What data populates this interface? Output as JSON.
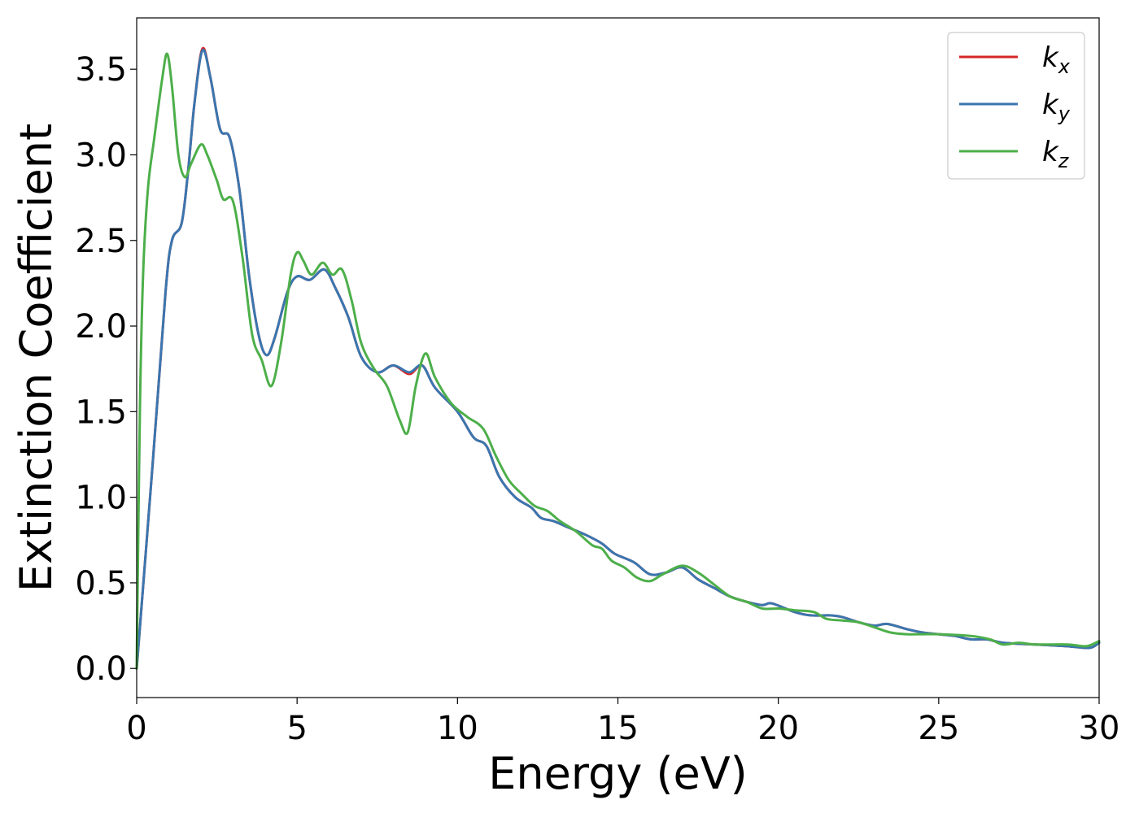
{
  "chart_data": {
    "type": "line",
    "xlabel": "Energy (eV)",
    "ylabel": "Extinction Coefficient",
    "xlim": [
      0,
      30
    ],
    "ylim": [
      -0.17,
      3.8
    ],
    "xticks": [
      "0",
      "5",
      "10",
      "15",
      "20",
      "25",
      "30"
    ],
    "yticks": [
      "0.0",
      "0.5",
      "1.0",
      "1.5",
      "2.0",
      "2.5",
      "3.0",
      "3.5"
    ],
    "grid": false,
    "legend_position": "top-right",
    "series": [
      {
        "name": "k",
        "sub": "x",
        "color": "#d62728",
        "points": [
          [
            0,
            0
          ],
          [
            0.5,
            1.2
          ],
          [
            0.9,
            2.2
          ],
          [
            1.1,
            2.5
          ],
          [
            1.4,
            2.6
          ],
          [
            1.6,
            2.9
          ],
          [
            1.8,
            3.3
          ],
          [
            2.05,
            3.62
          ],
          [
            2.3,
            3.45
          ],
          [
            2.6,
            3.15
          ],
          [
            2.9,
            3.1
          ],
          [
            3.2,
            2.8
          ],
          [
            3.5,
            2.3
          ],
          [
            3.8,
            1.95
          ],
          [
            4.05,
            1.83
          ],
          [
            4.3,
            1.93
          ],
          [
            4.7,
            2.2
          ],
          [
            5.0,
            2.29
          ],
          [
            5.4,
            2.27
          ],
          [
            5.85,
            2.33
          ],
          [
            6.2,
            2.22
          ],
          [
            6.6,
            2.05
          ],
          [
            7.0,
            1.82
          ],
          [
            7.5,
            1.73
          ],
          [
            8.0,
            1.77
          ],
          [
            8.5,
            1.72
          ],
          [
            8.9,
            1.77
          ],
          [
            9.3,
            1.64
          ],
          [
            10.0,
            1.5
          ],
          [
            10.5,
            1.35
          ],
          [
            10.9,
            1.3
          ],
          [
            11.3,
            1.12
          ],
          [
            11.8,
            1.0
          ],
          [
            12.3,
            0.94
          ],
          [
            12.6,
            0.88
          ],
          [
            13.0,
            0.86
          ],
          [
            13.5,
            0.82
          ],
          [
            14.0,
            0.78
          ],
          [
            14.5,
            0.73
          ],
          [
            14.9,
            0.67
          ],
          [
            15.5,
            0.62
          ],
          [
            16.0,
            0.55
          ],
          [
            16.5,
            0.56
          ],
          [
            17.0,
            0.59
          ],
          [
            17.5,
            0.52
          ],
          [
            18.0,
            0.47
          ],
          [
            18.5,
            0.42
          ],
          [
            19.0,
            0.39
          ],
          [
            19.5,
            0.37
          ],
          [
            19.8,
            0.38
          ],
          [
            20.5,
            0.33
          ],
          [
            21.0,
            0.31
          ],
          [
            21.6,
            0.31
          ],
          [
            22.0,
            0.3
          ],
          [
            22.5,
            0.27
          ],
          [
            23.0,
            0.25
          ],
          [
            23.4,
            0.26
          ],
          [
            24.0,
            0.23
          ],
          [
            24.5,
            0.21
          ],
          [
            25.0,
            0.2
          ],
          [
            25.5,
            0.19
          ],
          [
            26.0,
            0.17
          ],
          [
            26.5,
            0.17
          ],
          [
            27.0,
            0.15
          ],
          [
            28.0,
            0.14
          ],
          [
            29.0,
            0.13
          ],
          [
            29.7,
            0.12
          ],
          [
            30.0,
            0.15
          ]
        ]
      },
      {
        "name": "k",
        "sub": "y",
        "color": "#3a76af",
        "points": [
          [
            0,
            0
          ],
          [
            0.5,
            1.2
          ],
          [
            0.9,
            2.2
          ],
          [
            1.1,
            2.5
          ],
          [
            1.4,
            2.6
          ],
          [
            1.6,
            2.9
          ],
          [
            1.8,
            3.3
          ],
          [
            2.05,
            3.61
          ],
          [
            2.3,
            3.45
          ],
          [
            2.6,
            3.15
          ],
          [
            2.9,
            3.1
          ],
          [
            3.2,
            2.8
          ],
          [
            3.5,
            2.3
          ],
          [
            3.8,
            1.95
          ],
          [
            4.05,
            1.83
          ],
          [
            4.3,
            1.93
          ],
          [
            4.7,
            2.2
          ],
          [
            5.0,
            2.29
          ],
          [
            5.4,
            2.27
          ],
          [
            5.85,
            2.33
          ],
          [
            6.2,
            2.22
          ],
          [
            6.6,
            2.05
          ],
          [
            7.0,
            1.82
          ],
          [
            7.5,
            1.73
          ],
          [
            8.0,
            1.77
          ],
          [
            8.5,
            1.73
          ],
          [
            8.9,
            1.77
          ],
          [
            9.3,
            1.64
          ],
          [
            10.0,
            1.5
          ],
          [
            10.5,
            1.35
          ],
          [
            10.9,
            1.3
          ],
          [
            11.3,
            1.12
          ],
          [
            11.8,
            1.0
          ],
          [
            12.3,
            0.94
          ],
          [
            12.6,
            0.88
          ],
          [
            13.0,
            0.86
          ],
          [
            13.5,
            0.82
          ],
          [
            14.0,
            0.78
          ],
          [
            14.5,
            0.73
          ],
          [
            14.9,
            0.67
          ],
          [
            15.5,
            0.62
          ],
          [
            16.0,
            0.55
          ],
          [
            16.5,
            0.56
          ],
          [
            17.0,
            0.59
          ],
          [
            17.5,
            0.52
          ],
          [
            18.0,
            0.47
          ],
          [
            18.5,
            0.42
          ],
          [
            19.0,
            0.39
          ],
          [
            19.5,
            0.37
          ],
          [
            19.8,
            0.38
          ],
          [
            20.5,
            0.33
          ],
          [
            21.0,
            0.31
          ],
          [
            21.6,
            0.31
          ],
          [
            22.0,
            0.3
          ],
          [
            22.5,
            0.27
          ],
          [
            23.0,
            0.25
          ],
          [
            23.4,
            0.26
          ],
          [
            24.0,
            0.23
          ],
          [
            24.5,
            0.21
          ],
          [
            25.0,
            0.2
          ],
          [
            25.5,
            0.19
          ],
          [
            26.0,
            0.17
          ],
          [
            26.5,
            0.17
          ],
          [
            27.0,
            0.15
          ],
          [
            28.0,
            0.14
          ],
          [
            29.0,
            0.13
          ],
          [
            29.7,
            0.12
          ],
          [
            30.0,
            0.15
          ]
        ]
      },
      {
        "name": "k",
        "sub": "z",
        "color": "#4daf4a",
        "points": [
          [
            0,
            0
          ],
          [
            0.1,
            1.5
          ],
          [
            0.2,
            2.3
          ],
          [
            0.35,
            2.8
          ],
          [
            0.55,
            3.1
          ],
          [
            0.8,
            3.45
          ],
          [
            0.95,
            3.59
          ],
          [
            1.1,
            3.4
          ],
          [
            1.3,
            3.0
          ],
          [
            1.5,
            2.87
          ],
          [
            1.7,
            2.95
          ],
          [
            2.0,
            3.06
          ],
          [
            2.2,
            3.0
          ],
          [
            2.5,
            2.85
          ],
          [
            2.7,
            2.74
          ],
          [
            3.0,
            2.73
          ],
          [
            3.3,
            2.4
          ],
          [
            3.6,
            1.95
          ],
          [
            3.9,
            1.8
          ],
          [
            4.2,
            1.65
          ],
          [
            4.5,
            1.9
          ],
          [
            4.8,
            2.3
          ],
          [
            5.0,
            2.43
          ],
          [
            5.2,
            2.38
          ],
          [
            5.45,
            2.3
          ],
          [
            5.8,
            2.37
          ],
          [
            6.1,
            2.3
          ],
          [
            6.4,
            2.33
          ],
          [
            6.7,
            2.15
          ],
          [
            7.0,
            1.9
          ],
          [
            7.4,
            1.75
          ],
          [
            7.8,
            1.65
          ],
          [
            8.2,
            1.45
          ],
          [
            8.45,
            1.38
          ],
          [
            8.7,
            1.65
          ],
          [
            9.0,
            1.84
          ],
          [
            9.3,
            1.7
          ],
          [
            9.8,
            1.55
          ],
          [
            10.3,
            1.47
          ],
          [
            10.8,
            1.4
          ],
          [
            11.2,
            1.24
          ],
          [
            11.6,
            1.1
          ],
          [
            12.0,
            1.02
          ],
          [
            12.4,
            0.95
          ],
          [
            12.8,
            0.92
          ],
          [
            13.2,
            0.86
          ],
          [
            13.7,
            0.8
          ],
          [
            14.2,
            0.72
          ],
          [
            14.5,
            0.7
          ],
          [
            14.8,
            0.63
          ],
          [
            15.2,
            0.59
          ],
          [
            15.6,
            0.53
          ],
          [
            16.0,
            0.51
          ],
          [
            16.4,
            0.55
          ],
          [
            17.0,
            0.6
          ],
          [
            17.5,
            0.56
          ],
          [
            18.0,
            0.49
          ],
          [
            18.5,
            0.42
          ],
          [
            19.0,
            0.39
          ],
          [
            19.5,
            0.35
          ],
          [
            20.0,
            0.35
          ],
          [
            20.5,
            0.34
          ],
          [
            21.1,
            0.33
          ],
          [
            21.5,
            0.29
          ],
          [
            22.0,
            0.28
          ],
          [
            22.5,
            0.27
          ],
          [
            23.0,
            0.24
          ],
          [
            23.5,
            0.21
          ],
          [
            24.0,
            0.2
          ],
          [
            24.5,
            0.2
          ],
          [
            25.0,
            0.2
          ],
          [
            26.0,
            0.19
          ],
          [
            26.6,
            0.17
          ],
          [
            27.0,
            0.14
          ],
          [
            27.5,
            0.15
          ],
          [
            28.0,
            0.14
          ],
          [
            29.0,
            0.14
          ],
          [
            29.6,
            0.13
          ],
          [
            30.0,
            0.16
          ]
        ]
      }
    ]
  }
}
